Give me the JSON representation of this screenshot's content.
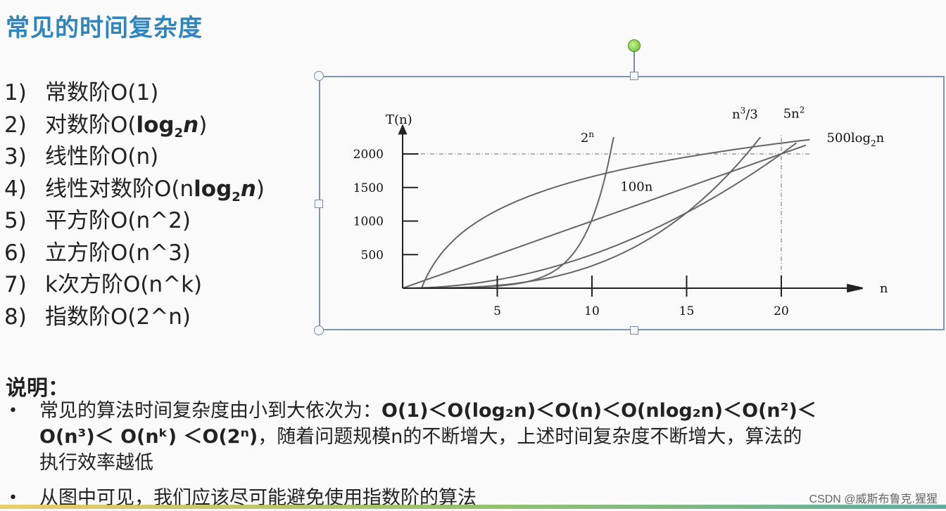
{
  "title": "常见的时间复杂度",
  "list": [
    {
      "num": "1)",
      "name": "常数阶O(1)"
    },
    {
      "num": "2)",
      "name_pre": "对数阶O(",
      "log": "log",
      "sub": "2",
      "n": "n",
      "close": ")"
    },
    {
      "num": "3)",
      "name": "线性阶O(n)"
    },
    {
      "num": "4)",
      "name_pre": "线性对数阶O(n",
      "log": "log",
      "sub": "2",
      "n": "n",
      "close": ")"
    },
    {
      "num": "5)",
      "name": "平方阶O(n^2)"
    },
    {
      "num": "6)",
      "name": "立方阶O(n^3)"
    },
    {
      "num": "7)",
      "name": "k次方阶O(n^k)"
    },
    {
      "num": "8)",
      "name": "指数阶O(2^n)"
    }
  ],
  "chart_data": {
    "type": "line",
    "ylabel": "T(n)",
    "xlabel": "n",
    "xlim": [
      0,
      23
    ],
    "ylim": [
      0,
      2300
    ],
    "x_ticks": [
      5,
      10,
      15,
      20
    ],
    "y_ticks": [
      500,
      1000,
      1500,
      2000
    ],
    "reference_lines": {
      "y": 2000,
      "x": 20
    },
    "series": [
      {
        "name": "2",
        "name_sup": "n"
      },
      {
        "name": "100n"
      },
      {
        "name": "n",
        "name_sup": "3",
        "name_post": "/3"
      },
      {
        "name": "5n",
        "name_sup": "2"
      },
      {
        "name": "500log",
        "name_sub": "2",
        "name_post": "n"
      }
    ]
  },
  "notes": {
    "head": "说明：",
    "b1_text": "常见的算法时间复杂度由小到大依次为：",
    "b1_order": "O(1)＜O(log₂n)＜O(n)＜O(nlog₂n)＜O(n²)＜",
    "b1_line2_a": "O(n³)＜ O(nᵏ) ＜O(2ⁿ)",
    "b1_line2_b": "，随着问题规模n的不断增大，上述时间复杂度不断增大，算法的",
    "b1_line3": "执行效率越低",
    "b2": "从图中可见，我们应该尽可能避免使用指数阶的算法"
  },
  "watermark": "CSDN @威斯布鲁克.猩猩"
}
